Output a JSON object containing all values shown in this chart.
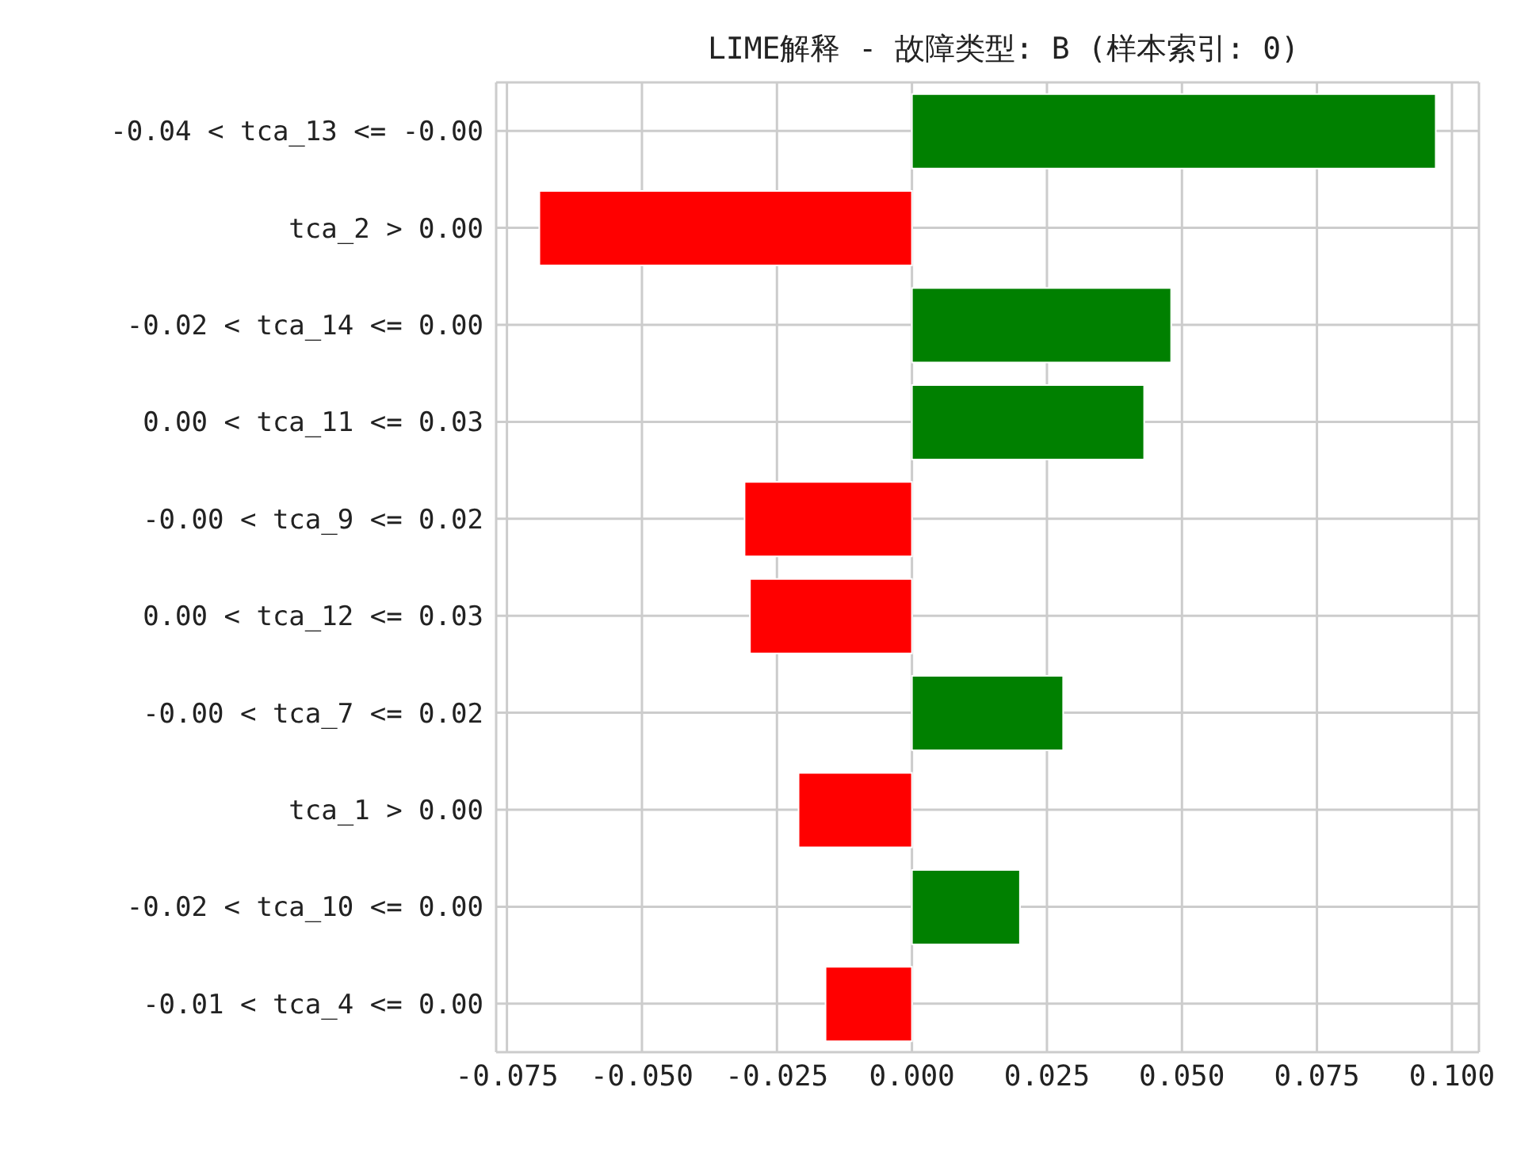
{
  "chart_data": {
    "type": "bar",
    "orientation": "horizontal",
    "title": "LIME解释 - 故障类型: B (样本索引: 0)",
    "categories": [
      "-0.04 < tca_13 <= -0.00",
      "tca_2 > 0.00",
      "-0.02 < tca_14 <= 0.00",
      "0.00 < tca_11 <= 0.03",
      "-0.00 < tca_9 <= 0.02",
      "0.00 < tca_12 <= 0.03",
      "-0.00 < tca_7 <= 0.02",
      "tca_1 > 0.00",
      "-0.02 < tca_10 <= 0.00",
      "-0.01 < tca_4 <= 0.00"
    ],
    "values": [
      0.097,
      -0.069,
      0.048,
      0.043,
      -0.031,
      -0.03,
      0.028,
      -0.021,
      0.02,
      -0.016
    ],
    "colors": [
      "#008000",
      "#ff0000",
      "#008000",
      "#008000",
      "#ff0000",
      "#ff0000",
      "#008000",
      "#ff0000",
      "#008000",
      "#ff0000"
    ],
    "xlim": [
      -0.077,
      0.105
    ],
    "xticks": [
      {
        "value": -0.075,
        "label": "-0.075"
      },
      {
        "value": -0.05,
        "label": "-0.050"
      },
      {
        "value": -0.025,
        "label": "-0.025"
      },
      {
        "value": 0,
        "label": "0.000"
      },
      {
        "value": 0.025,
        "label": "0.025"
      },
      {
        "value": 0.05,
        "label": "0.050"
      },
      {
        "value": 0.075,
        "label": "0.075"
      },
      {
        "value": 0.1,
        "label": "0.100"
      }
    ],
    "grid": true
  }
}
